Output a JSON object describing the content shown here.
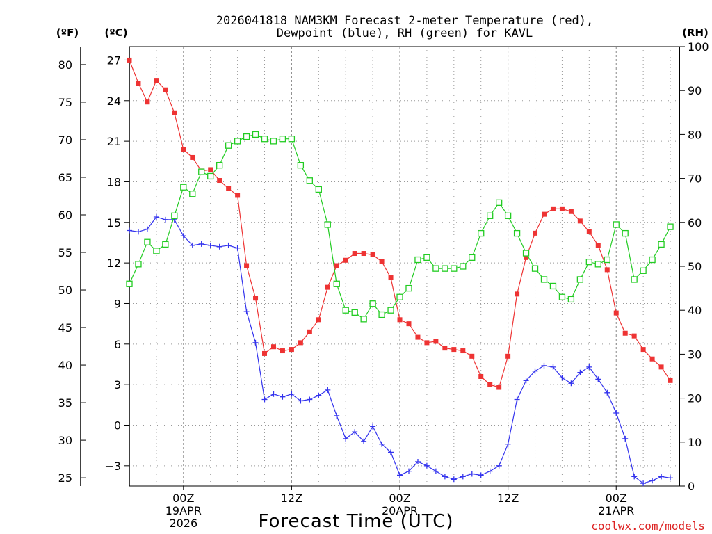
{
  "chart_data": {
    "type": "line",
    "title_lines": [
      "2026041818 NAM3KM Forecast 2-meter Temperature (red),",
      "Dewpoint (blue), RH (green) for KAVL"
    ],
    "xlabel": "Forecast Time (UTC)",
    "credit": "coolwx.com/models",
    "axis_units": {
      "fahrenheit": "(ºF)",
      "celsius": "(ºC)",
      "rh": "(RH)"
    },
    "x_hours_range": [
      -6,
      55
    ],
    "x_ticks": [
      {
        "hour": 0,
        "lines": [
          "00Z",
          "19APR",
          "2026"
        ]
      },
      {
        "hour": 12,
        "lines": [
          "12Z"
        ]
      },
      {
        "hour": 24,
        "lines": [
          "00Z",
          "20APR"
        ]
      },
      {
        "hour": 36,
        "lines": [
          "12Z"
        ]
      },
      {
        "hour": 48,
        "lines": [
          "00Z",
          "21APR"
        ]
      }
    ],
    "ylim_celsius": [
      -4.5,
      28
    ],
    "ylim_rh": [
      0,
      100
    ],
    "celsius_ticks": [
      27,
      24,
      21,
      18,
      15,
      12,
      9,
      6,
      3,
      0,
      -3
    ],
    "fahrenheit_ticks": [
      80,
      75,
      70,
      65,
      60,
      55,
      50,
      45,
      40,
      35,
      30,
      25
    ],
    "rh_ticks": [
      100,
      90,
      80,
      70,
      60,
      50,
      40,
      30,
      20,
      10,
      0
    ],
    "series": [
      {
        "name": "2-meter Temperature",
        "unit": "C",
        "axis": "left",
        "marker": "filled-square",
        "color": "#ee3333",
        "x": [
          -6,
          -5,
          -4,
          -3,
          -2,
          -1,
          0,
          1,
          2,
          3,
          4,
          5,
          6,
          7,
          8,
          9,
          10,
          11,
          12,
          13,
          14,
          15,
          16,
          17,
          18,
          19,
          20,
          21,
          22,
          23,
          24,
          25,
          26,
          27,
          28,
          29,
          30,
          31,
          32,
          33,
          34,
          35,
          36,
          37,
          38,
          39,
          40,
          41,
          42,
          43,
          44,
          45,
          46,
          47,
          48,
          49,
          50,
          51,
          52,
          53,
          54
        ],
        "values": [
          27.0,
          25.3,
          23.9,
          25.5,
          24.8,
          23.1,
          20.4,
          19.8,
          18.8,
          18.9,
          18.1,
          17.5,
          17.0,
          11.8,
          9.4,
          5.3,
          5.8,
          5.5,
          5.6,
          6.1,
          6.9,
          7.8,
          10.2,
          11.8,
          12.2,
          12.7,
          12.7,
          12.6,
          12.1,
          10.9,
          7.8,
          7.5,
          6.5,
          6.1,
          6.2,
          5.7,
          5.6,
          5.5,
          5.1,
          3.6,
          3.0,
          2.8,
          5.1,
          9.7,
          12.4,
          14.2,
          15.6,
          16.0,
          16.0,
          15.8,
          15.1,
          14.3,
          13.3,
          11.5,
          8.3,
          6.8,
          6.6,
          5.6,
          4.9,
          4.3,
          3.3
        ]
      },
      {
        "name": "Dewpoint",
        "unit": "C",
        "axis": "left",
        "marker": "plus",
        "color": "#3333ee",
        "x": [
          -6,
          -5,
          -4,
          -3,
          -2,
          -1,
          0,
          1,
          2,
          3,
          4,
          5,
          6,
          7,
          8,
          9,
          10,
          11,
          12,
          13,
          14,
          15,
          16,
          17,
          18,
          19,
          20,
          21,
          22,
          23,
          24,
          25,
          26,
          27,
          28,
          29,
          30,
          31,
          32,
          33,
          34,
          35,
          36,
          37,
          38,
          39,
          40,
          41,
          42,
          43,
          44,
          45,
          46,
          47,
          48,
          49,
          50,
          51,
          52,
          53,
          54
        ],
        "values": [
          14.4,
          14.3,
          14.5,
          15.4,
          15.2,
          15.2,
          14.0,
          13.3,
          13.4,
          13.3,
          13.2,
          13.3,
          13.1,
          8.4,
          6.1,
          1.9,
          2.3,
          2.1,
          2.3,
          1.8,
          1.9,
          2.2,
          2.6,
          0.7,
          -1.0,
          -0.5,
          -1.2,
          -0.1,
          -1.4,
          -2.0,
          -3.7,
          -3.4,
          -2.7,
          -3.0,
          -3.4,
          -3.8,
          -4.0,
          -3.8,
          -3.6,
          -3.7,
          -3.4,
          -3.0,
          -1.4,
          1.9,
          3.3,
          4.0,
          4.4,
          4.3,
          3.5,
          3.1,
          3.9,
          4.3,
          3.4,
          2.4,
          0.9,
          -1.0,
          -3.8,
          -4.3,
          -4.1,
          -3.8,
          -3.9
        ]
      },
      {
        "name": "RH",
        "unit": "%",
        "axis": "right",
        "marker": "open-square",
        "color": "#22cc22",
        "x": [
          -6,
          -5,
          -4,
          -3,
          -2,
          -1,
          0,
          1,
          2,
          3,
          4,
          5,
          6,
          7,
          8,
          9,
          10,
          11,
          12,
          13,
          14,
          15,
          16,
          17,
          18,
          19,
          20,
          21,
          22,
          23,
          24,
          25,
          26,
          27,
          28,
          29,
          30,
          31,
          32,
          33,
          34,
          35,
          36,
          37,
          38,
          39,
          40,
          41,
          42,
          43,
          44,
          45,
          46,
          47,
          48,
          49,
          50,
          51,
          52,
          53,
          54
        ],
        "values": [
          46,
          50.5,
          55.5,
          53.5,
          55,
          61.5,
          68,
          66.5,
          71.5,
          70.5,
          73,
          77.5,
          78.5,
          79.5,
          80,
          79,
          78.5,
          79,
          79,
          73,
          69.5,
          67.5,
          59.5,
          46,
          40,
          39.5,
          38,
          41.5,
          39,
          40,
          43,
          45,
          51.5,
          52,
          49.5,
          49.5,
          49.5,
          50,
          52,
          57.5,
          61.5,
          64.5,
          61.5,
          57.5,
          53,
          49.5,
          47,
          45.5,
          43,
          42.5,
          47,
          51,
          50.5,
          51.5,
          59.5,
          57.5,
          47,
          49,
          51.5,
          55,
          59
        ]
      }
    ]
  }
}
